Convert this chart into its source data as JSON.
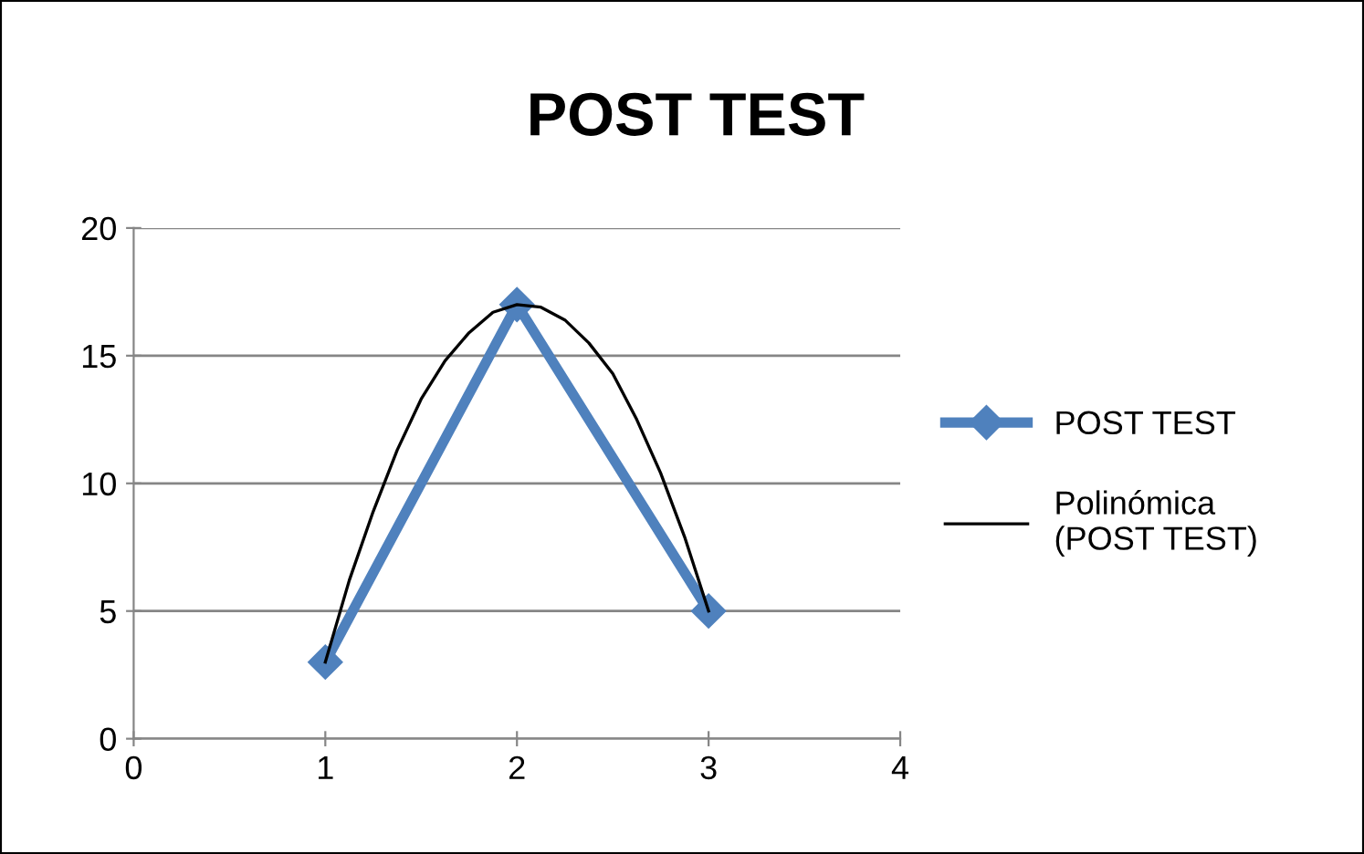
{
  "chart_data": {
    "type": "line",
    "title": "POST TEST",
    "series": [
      {
        "name": "POST TEST",
        "color": "#4f81bd",
        "x": [
          1,
          2,
          3
        ],
        "values": [
          3,
          17,
          5
        ],
        "marker": "diamond"
      },
      {
        "name": "Polinómica\n(POST TEST)",
        "color": "#000000",
        "x": [
          1,
          1.125,
          1.25,
          1.375,
          1.5,
          1.625,
          1.75,
          1.875,
          2,
          2.125,
          2.25,
          2.375,
          2.5,
          2.625,
          2.75,
          2.875,
          3
        ],
        "values": [
          3,
          6.2,
          8.9,
          11.3,
          13.3,
          14.8,
          15.9,
          16.7,
          17,
          16.9,
          16.4,
          15.5,
          14.3,
          12.5,
          10.4,
          7.9,
          5
        ],
        "marker": "none"
      }
    ],
    "xlim": [
      0,
      4
    ],
    "xticks": [
      0,
      1,
      2,
      3,
      4
    ],
    "ylim": [
      0,
      20
    ],
    "yticks": [
      0,
      5,
      10,
      15,
      20
    ],
    "grid": "y",
    "legend": "right",
    "line_style": "solid"
  }
}
